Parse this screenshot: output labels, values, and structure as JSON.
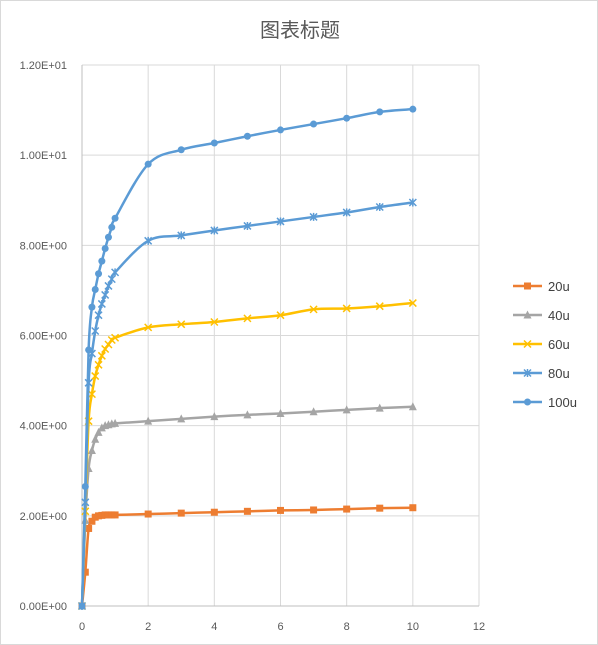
{
  "chart_data": {
    "type": "scatter",
    "title": "图表标题",
    "xlabel": "",
    "ylabel": "",
    "xlim": [
      0,
      12
    ],
    "ylim": [
      0,
      12
    ],
    "x_ticks": [
      0,
      2,
      4,
      6,
      8,
      10,
      12
    ],
    "y_ticks": [
      0,
      2,
      4,
      6,
      8,
      10,
      12
    ],
    "y_tick_labels": [
      "0.00E+00",
      "2.00E+00",
      "4.00E+00",
      "6.00E+00",
      "8.00E+00",
      "1.00E+01",
      "1.20E+01"
    ],
    "grid": "major vertical and horizontal",
    "legend_position": "right",
    "series": [
      {
        "name": "20u",
        "color": "#ed7d31",
        "marker": "square",
        "x": [
          0,
          0.1,
          0.2,
          0.3,
          0.4,
          0.5,
          0.6,
          0.7,
          0.8,
          0.9,
          1,
          2,
          3,
          4,
          5,
          6,
          7,
          8,
          9,
          10
        ],
        "y": [
          0,
          0.75,
          1.72,
          1.88,
          1.97,
          2.0,
          2.01,
          2.02,
          2.02,
          2.02,
          2.02,
          2.04,
          2.06,
          2.08,
          2.1,
          2.12,
          2.13,
          2.15,
          2.17,
          2.18
        ]
      },
      {
        "name": "40u",
        "color": "#a5a5a5",
        "marker": "triangle",
        "x": [
          0,
          0.1,
          0.2,
          0.3,
          0.4,
          0.5,
          0.6,
          0.7,
          0.8,
          0.9,
          1,
          2,
          3,
          4,
          5,
          6,
          7,
          8,
          9,
          10
        ],
        "y": [
          0,
          1.9,
          3.05,
          3.45,
          3.7,
          3.85,
          3.95,
          4.0,
          4.02,
          4.04,
          4.05,
          4.1,
          4.15,
          4.2,
          4.24,
          4.27,
          4.31,
          4.35,
          4.39,
          4.42
        ]
      },
      {
        "name": "60u",
        "color": "#ffc000",
        "marker": "x",
        "x": [
          0,
          0.1,
          0.2,
          0.3,
          0.4,
          0.5,
          0.6,
          0.7,
          0.8,
          0.9,
          1,
          2,
          3,
          4,
          5,
          6,
          7,
          8,
          9,
          10
        ],
        "y": [
          0,
          2.1,
          4.1,
          4.7,
          5.1,
          5.35,
          5.55,
          5.7,
          5.8,
          5.9,
          5.95,
          6.18,
          6.25,
          6.3,
          6.38,
          6.45,
          6.58,
          6.6,
          6.65,
          6.72
        ]
      },
      {
        "name": "80u",
        "color": "#5b9bd5",
        "marker": "star",
        "x": [
          0,
          0.1,
          0.2,
          0.3,
          0.4,
          0.5,
          0.6,
          0.7,
          0.8,
          0.9,
          1,
          2,
          3,
          4,
          5,
          6,
          7,
          8,
          9,
          10
        ],
        "y": [
          0,
          2.3,
          4.95,
          5.6,
          6.1,
          6.45,
          6.7,
          6.9,
          7.1,
          7.25,
          7.4,
          8.1,
          8.22,
          8.33,
          8.43,
          8.53,
          8.63,
          8.73,
          8.85,
          8.95
        ]
      },
      {
        "name": "100u",
        "color": "#5b9bd5",
        "marker": "circle",
        "x": [
          0,
          0.1,
          0.2,
          0.3,
          0.4,
          0.5,
          0.6,
          0.7,
          0.8,
          0.9,
          1,
          2,
          3,
          4,
          5,
          6,
          7,
          8,
          9,
          10
        ],
        "y": [
          0,
          2.65,
          5.68,
          6.63,
          7.02,
          7.37,
          7.65,
          7.93,
          8.18,
          8.4,
          8.6,
          9.8,
          10.12,
          10.27,
          10.42,
          10.56,
          10.69,
          10.82,
          10.96,
          11.02
        ]
      }
    ]
  }
}
